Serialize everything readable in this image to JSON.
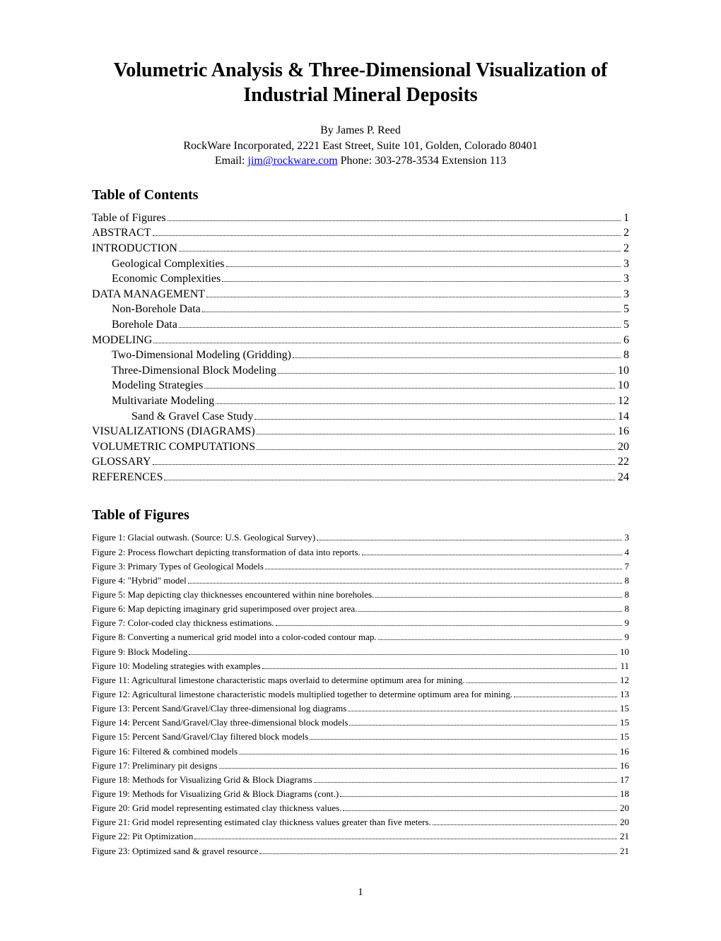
{
  "title_line1": "Volumetric Analysis & Three-Dimensional Visualization of",
  "title_line2": "Industrial Mineral Deposits",
  "byline": {
    "author": "By James P. Reed",
    "affiliation": "RockWare Incorporated, 2221 East Street, Suite 101, Golden, Colorado 80401",
    "email_prefix": "Email: ",
    "email": "jim@rockware.com",
    "phone": "  Phone: 303-278-3534 Extension 113"
  },
  "headings": {
    "toc": "Table of Contents",
    "tof": "Table of Figures"
  },
  "toc": [
    {
      "label": "Table of Figures",
      "page": "1",
      "level": 1
    },
    {
      "label": "ABSTRACT",
      "page": "2",
      "level": 1
    },
    {
      "label": "INTRODUCTION",
      "page": "2",
      "level": 1
    },
    {
      "label": "Geological Complexities",
      "page": "3",
      "level": 2
    },
    {
      "label": "Economic Complexities",
      "page": "3",
      "level": 2
    },
    {
      "label": "DATA MANAGEMENT",
      "page": "3",
      "level": 1
    },
    {
      "label": "Non-Borehole Data",
      "page": "5",
      "level": 2
    },
    {
      "label": "Borehole Data",
      "page": "5",
      "level": 2
    },
    {
      "label": "MODELING",
      "page": "6",
      "level": 1
    },
    {
      "label": "Two-Dimensional Modeling (Gridding)",
      "page": "8",
      "level": 2
    },
    {
      "label": "Three-Dimensional Block Modeling",
      "page": "10",
      "level": 2
    },
    {
      "label": "Modeling Strategies",
      "page": "10",
      "level": 2
    },
    {
      "label": "Multivariate Modeling",
      "page": "12",
      "level": 2
    },
    {
      "label": "Sand & Gravel Case Study",
      "page": "14",
      "level": 3
    },
    {
      "label": "VISUALIZATIONS (DIAGRAMS)",
      "page": "16",
      "level": 1
    },
    {
      "label": "VOLUMETRIC COMPUTATIONS",
      "page": "20",
      "level": 1
    },
    {
      "label": "GLOSSARY",
      "page": "22",
      "level": 1
    },
    {
      "label": "REFERENCES",
      "page": "24",
      "level": 1
    }
  ],
  "tof": [
    {
      "label": "Figure 1:  Glacial outwash.  (Source: U.S. Geological Survey)",
      "page": "3"
    },
    {
      "label": "Figure 2:  Process flowchart depicting transformation of data into reports.",
      "page": "4"
    },
    {
      "label": "Figure 3:  Primary Types of Geological Models",
      "page": "7"
    },
    {
      "label": "Figure 4:  \"Hybrid\" model",
      "page": "8"
    },
    {
      "label": "Figure 5:  Map depicting clay thicknesses encountered within nine boreholes.",
      "page": "8"
    },
    {
      "label": "Figure 6:  Map depicting imaginary grid superimposed over project area.",
      "page": "8"
    },
    {
      "label": "Figure 7:  Color-coded clay thickness estimations.",
      "page": "9"
    },
    {
      "label": "Figure 8:  Converting a numerical grid model into a color-coded contour map.",
      "page": "9"
    },
    {
      "label": "Figure 9:  Block Modeling",
      "page": "10"
    },
    {
      "label": "Figure 10:  Modeling strategies with examples",
      "page": "11"
    },
    {
      "label": "Figure 11:  Agricultural limestone characteristic maps overlaid to determine optimum area for mining.",
      "page": "12"
    },
    {
      "label": "Figure 12:  Agricultural limestone characteristic models multiplied together to determine optimum area for mining.",
      "page": "13"
    },
    {
      "label": "Figure 13:  Percent Sand/Gravel/Clay three-dimensional log diagrams",
      "page": "15"
    },
    {
      "label": "Figure 14:  Percent Sand/Gravel/Clay three-dimensional block models",
      "page": "15"
    },
    {
      "label": "Figure 15:  Percent Sand/Gravel/Clay filtered block models",
      "page": "15"
    },
    {
      "label": "Figure 16:  Filtered & combined models",
      "page": "16"
    },
    {
      "label": "Figure 17:  Preliminary pit designs",
      "page": "16"
    },
    {
      "label": "Figure 18:  Methods for Visualizing Grid & Block Diagrams",
      "page": "17"
    },
    {
      "label": "Figure 19:  Methods for Visualizing Grid & Block Diagrams (cont.)",
      "page": "18"
    },
    {
      "label": "Figure 20:  Grid model representing  estimated clay thickness values.",
      "page": "20"
    },
    {
      "label": "Figure 21:  Grid model representing estimated  clay thickness values greater than five meters.",
      "page": "20"
    },
    {
      "label": "Figure 22:  Pit Optimization",
      "page": "21"
    },
    {
      "label": "Figure 23:  Optimized sand & gravel resource",
      "page": "21"
    }
  ],
  "page_number": "1"
}
